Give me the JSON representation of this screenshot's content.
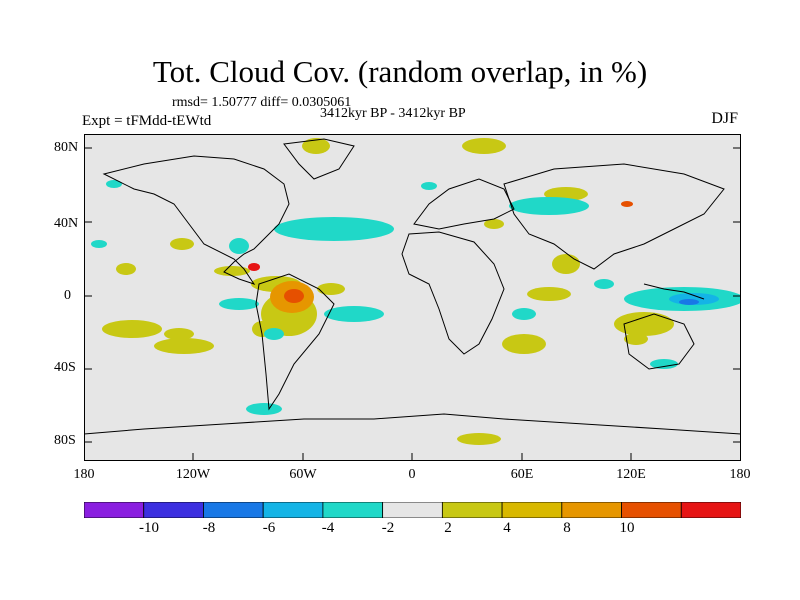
{
  "header": {
    "title": "Tot. Cloud Cov. (random overlap, in %)",
    "stats": "rmsd= 1.50777 diff= 0.0305061",
    "period": "3412kyr BP - 3412kyr BP",
    "experiment": "Expt = tFMdd-tEWtd",
    "season": "DJF"
  },
  "map": {
    "background": "#e6e6e6",
    "coast_color": "#000000",
    "y_ticks": [
      "80N",
      "40N",
      "0",
      "40S",
      "80S"
    ],
    "x_ticks": [
      "180",
      "120W",
      "60W",
      "0",
      "60E",
      "120E",
      "180"
    ]
  },
  "colorbar": {
    "colors": [
      "#8a1ee0",
      "#3c2fe0",
      "#1878e6",
      "#14b4e6",
      "#20d8c8",
      "#e6e6e6",
      "#c8c814",
      "#d8b800",
      "#e69600",
      "#e65000",
      "#e61414"
    ],
    "labels": [
      "-10",
      "-8",
      "-6",
      "-4",
      "-2",
      "2",
      "4",
      "8",
      "10"
    ]
  }
}
